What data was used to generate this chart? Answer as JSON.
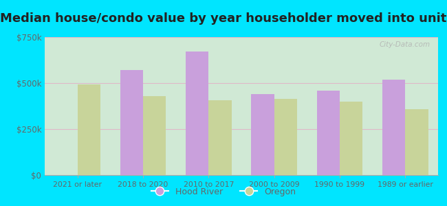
{
  "title": "Median house/condo value by year householder moved into unit",
  "categories": [
    "2021 or later",
    "2018 to 2020",
    "2010 to 2017",
    "2000 to 2009",
    "1990 to 1999",
    "1989 or earlier"
  ],
  "hood_river": [
    null,
    570000,
    670000,
    440000,
    460000,
    520000
  ],
  "oregon": [
    493000,
    428000,
    408000,
    415000,
    398000,
    358000
  ],
  "hood_river_color": "#c9a0dc",
  "oregon_color": "#c8d49a",
  "plot_bg_color_topleft": "#e0f5e0",
  "plot_bg_color_center": "#f5fff5",
  "outer_background": "#00e5ff",
  "ylim": [
    0,
    750000
  ],
  "yticks": [
    0,
    250000,
    500000,
    750000
  ],
  "ytick_labels": [
    "$0",
    "$250k",
    "$500k",
    "$750k"
  ],
  "legend_hood_river": "Hood River",
  "legend_oregon": "Oregon",
  "bar_width": 0.35,
  "title_fontsize": 13,
  "watermark": "City-Data.com",
  "grid_color": "#e0b8c8",
  "tick_color": "#666666"
}
